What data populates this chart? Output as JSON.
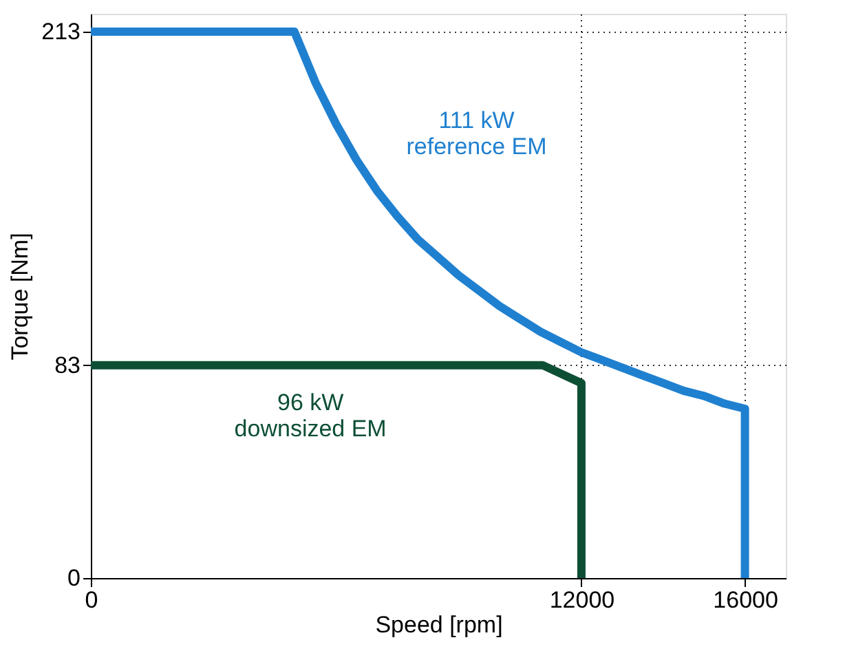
{
  "chart_data": {
    "type": "line",
    "xlabel": "Speed [rpm]",
    "ylabel": "Torque [Nm]",
    "xlim": [
      0,
      17000
    ],
    "ylim": [
      0,
      220
    ],
    "xticks": [
      0,
      12000,
      16000
    ],
    "yticks": [
      0,
      83,
      213
    ],
    "grid": true,
    "line_style": "solid",
    "marker": "none",
    "series": [
      {
        "color": "#1f80d0",
        "x": [
          0,
          4980,
          5500,
          6000,
          6500,
          7000,
          7500,
          8000,
          8500,
          9000,
          9500,
          10000,
          10500,
          11000,
          11500,
          12000,
          12500,
          13000,
          13500,
          14000,
          14500,
          15000,
          15500,
          16000,
          16000
        ],
        "values": [
          213,
          213,
          193,
          177,
          163,
          151,
          141,
          132,
          125,
          118,
          112,
          106,
          101,
          96,
          92,
          88,
          85,
          82,
          79,
          76,
          73,
          71,
          68,
          66,
          0
        ]
      },
      {
        "color": "#0d4f35",
        "x": [
          0,
          11050,
          12000,
          12000
        ],
        "values": [
          83,
          83,
          76,
          0
        ]
      }
    ],
    "annotations": [
      "111 kW\nreference EM",
      "96 kW\ndownsized EM"
    ]
  }
}
